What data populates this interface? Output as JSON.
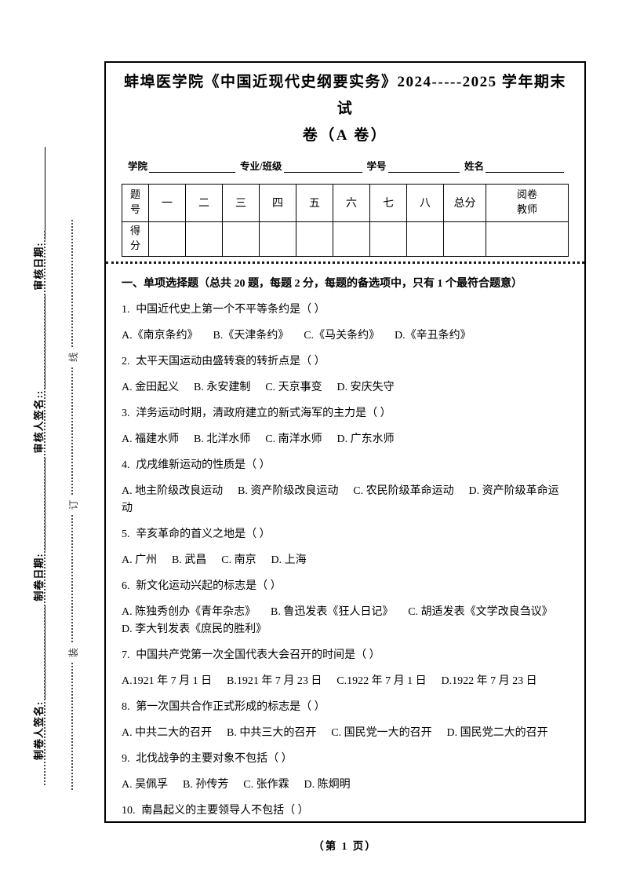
{
  "header": {
    "title_line1": "蚌埠医学院《中国近现代史纲要实务》2024-----2025 学年期末试",
    "title_line2": "卷（A 卷）",
    "fields": [
      {
        "label": "学院"
      },
      {
        "label": "专业/班级"
      },
      {
        "label": "学号"
      },
      {
        "label": "姓名"
      }
    ]
  },
  "score_table": {
    "columns": [
      "题号",
      "一",
      "二",
      "三",
      "四",
      "五",
      "六",
      "七",
      "八",
      "总分",
      "阅卷教师"
    ],
    "row2_label": "得分"
  },
  "section_heading": "一、单项选择题（总共 20 题，每题 2 分，每题的备选项中，只有 1 个最符合题意）",
  "questions": [
    {
      "num": "1.",
      "text": "中国近代史上第一个不平等条约是（  ）",
      "options": [
        "A.《南京条约》",
        "B.《天津条约》",
        "C.《马关条约》",
        "D.《辛丑条约》"
      ]
    },
    {
      "num": "2.",
      "text": "太平天国运动由盛转衰的转折点是（  ）",
      "options": [
        "A. 金田起义",
        "B. 永安建制",
        "C. 天京事变",
        "D. 安庆失守"
      ]
    },
    {
      "num": "3.",
      "text": "洋务运动时期，清政府建立的新式海军的主力是（  ）",
      "options": [
        "A. 福建水师",
        "B. 北洋水师",
        "C. 南洋水师",
        "D. 广东水师"
      ]
    },
    {
      "num": "4.",
      "text": "戊戌维新运动的性质是（  ）",
      "options": [
        "A. 地主阶级改良运动",
        "B. 资产阶级改良运动",
        "C. 农民阶级革命运动",
        "D. 资产阶级革命运动"
      ]
    },
    {
      "num": "5.",
      "text": "辛亥革命的首义之地是（  ）",
      "options": [
        "A. 广州",
        "B. 武昌",
        "C. 南京",
        "D. 上海"
      ]
    },
    {
      "num": "6.",
      "text": "新文化运动兴起的标志是（  ）",
      "options": [
        "A. 陈独秀创办《青年杂志》",
        "B. 鲁迅发表《狂人日记》",
        "C. 胡适发表《文学改良刍议》",
        "D. 李大钊发表《庶民的胜利》"
      ]
    },
    {
      "num": "7.",
      "text": "中国共产党第一次全国代表大会召开的时间是（  ）",
      "options": [
        "A.1921 年 7 月 1 日",
        "B.1921 年 7 月 23 日",
        "C.1922 年 7 月 1 日",
        "D.1922 年 7 月 23 日"
      ]
    },
    {
      "num": "8.",
      "text": "第一次国共合作正式形成的标志是（  ）",
      "options": [
        "A. 中共二大的召开",
        "B. 中共三大的召开",
        "C. 国民党一大的召开",
        "D. 国民党二大的召开"
      ]
    },
    {
      "num": "9.",
      "text": "北伐战争的主要对象不包括（  ）",
      "options": [
        "A. 吴佩孚",
        "B. 孙传芳",
        "C. 张作霖",
        "D. 陈炯明"
      ]
    },
    {
      "num": "10.",
      "text": "南昌起义的主要领导人不包括（  ）",
      "options": []
    }
  ],
  "margin": {
    "rotated_labels": [
      {
        "label": "制卷人签名:"
      },
      {
        "label": "制卷日期:"
      },
      {
        "label": "审核人签名::"
      },
      {
        "label": "审核日期:"
      }
    ],
    "binding_chars": [
      "装",
      "订",
      "线"
    ]
  },
  "footer": "（第 1 页）"
}
